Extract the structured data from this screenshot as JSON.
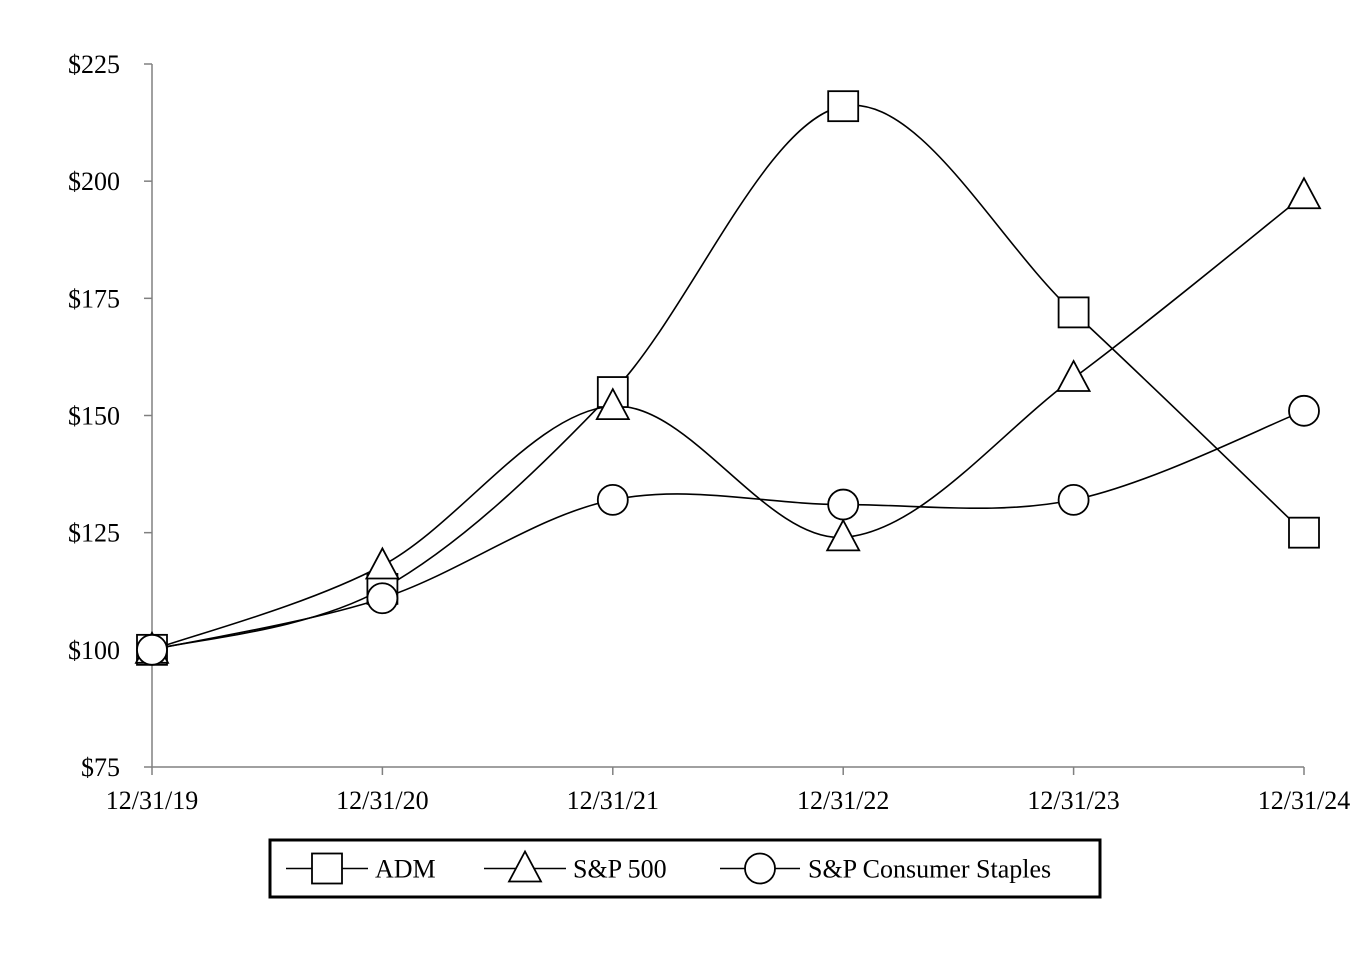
{
  "chart_data": {
    "type": "line",
    "title": "",
    "xlabel": "",
    "ylabel": "",
    "categories": [
      "12/31/19",
      "12/31/20",
      "12/31/21",
      "12/31/22",
      "12/31/23",
      "12/31/24"
    ],
    "y_ticks": [
      "$75",
      "$100",
      "$125",
      "$150",
      "$175",
      "$200",
      "$225"
    ],
    "y_tick_values": [
      75,
      100,
      125,
      150,
      175,
      200,
      225
    ],
    "ylim": [
      75,
      225
    ],
    "grid": false,
    "smooth": true,
    "legend_position": "bottom",
    "series": [
      {
        "name": "ADM",
        "marker": "square",
        "values": [
          100,
          113,
          155,
          216,
          172,
          125
        ]
      },
      {
        "name": "S&P 500",
        "marker": "triangle",
        "values": [
          100,
          118,
          152,
          124,
          158,
          197
        ]
      },
      {
        "name": "S&P Consumer Staples",
        "marker": "circle",
        "values": [
          100,
          111,
          132,
          131,
          132,
          151
        ]
      }
    ]
  }
}
